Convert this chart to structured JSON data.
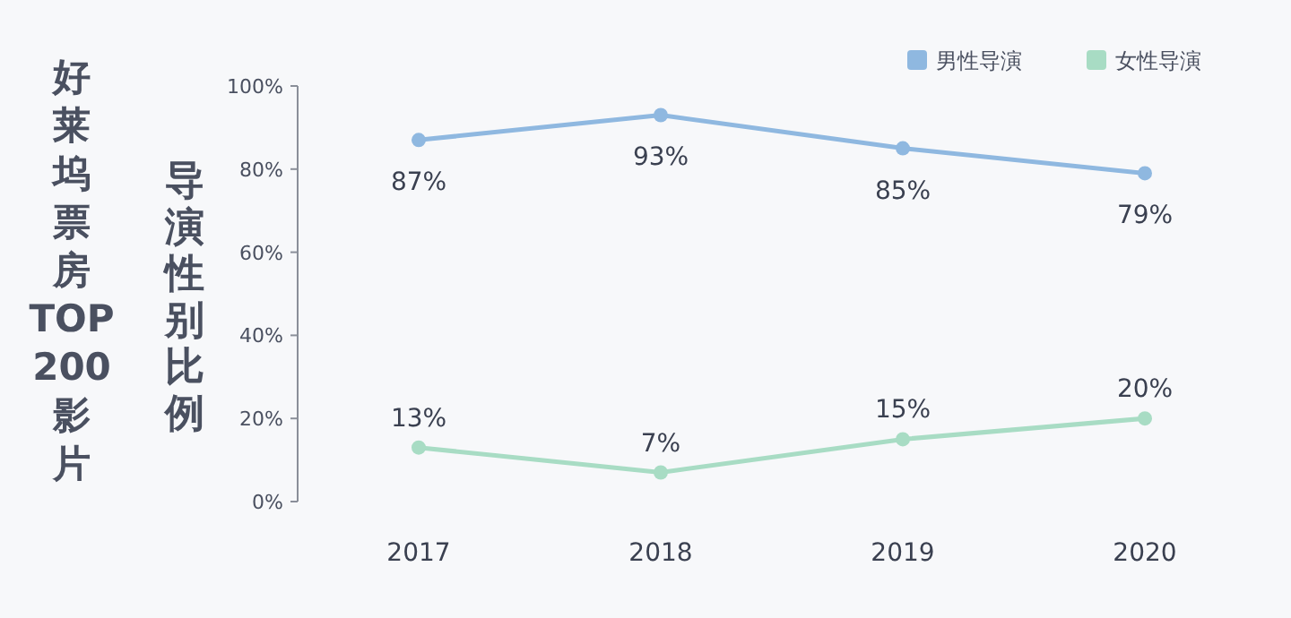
{
  "chart_data": {
    "type": "line",
    "title": "好莱坞票房 TOP 200 影片",
    "ylabel": "导演性别比例",
    "categories": [
      "2017",
      "2018",
      "2019",
      "2020"
    ],
    "series": [
      {
        "name": "男性导演",
        "color": "#8fb8e0",
        "values": [
          87,
          93,
          85,
          79
        ],
        "value_labels": [
          "87%",
          "93%",
          "85%",
          "79%"
        ]
      },
      {
        "name": "女性导演",
        "color": "#a8dcc4",
        "values": [
          13,
          7,
          15,
          20
        ],
        "value_labels": [
          "13%",
          "7%",
          "15%",
          "20%"
        ]
      }
    ],
    "ylim": [
      0,
      100
    ],
    "yticks": [
      {
        "value": 0,
        "label": "0%"
      },
      {
        "value": 20,
        "label": "20%"
      },
      {
        "value": 40,
        "label": "40%"
      },
      {
        "value": 60,
        "label": "60%"
      },
      {
        "value": 80,
        "label": "80%"
      },
      {
        "value": 100,
        "label": "100%"
      }
    ],
    "grid": false,
    "legend": "top right",
    "marker": "circle",
    "line_style": "solid"
  }
}
